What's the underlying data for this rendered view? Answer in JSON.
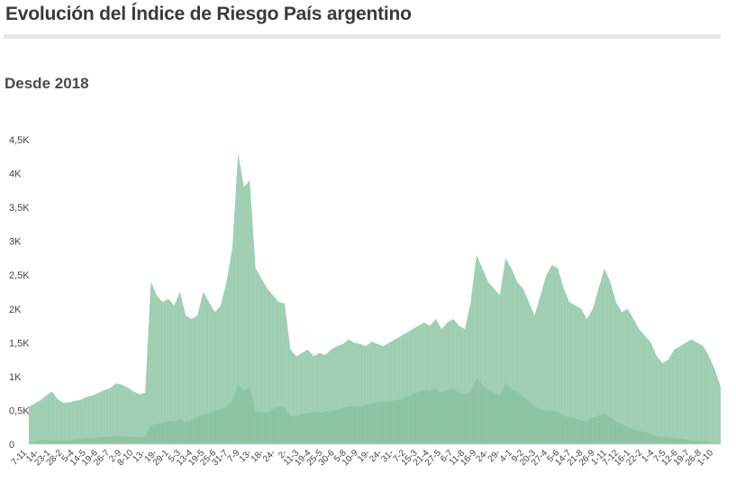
{
  "header": {
    "title": "Evolución del Índice de Riesgo País argentino",
    "subtitle": "Desde 2018"
  },
  "colors": {
    "area": "#9ccdb0",
    "area_inner": "#86bf9e",
    "axis_text": "#444444",
    "title_rule": "#e6e6e6"
  },
  "chart_data": {
    "type": "area",
    "title": "Evolución del Índice de Riesgo País argentino",
    "subtitle": "Desde 2018",
    "xlabel": "",
    "ylabel": "",
    "ylim": [
      0,
      4500
    ],
    "yticks": [
      0,
      500,
      1000,
      1500,
      2000,
      2500,
      3000,
      3500,
      4000,
      4500
    ],
    "ytick_labels": [
      "0",
      "0,5K",
      "1K",
      "1,5K",
      "2K",
      "2,5K",
      "3K",
      "3,5K",
      "4K",
      "4,5K"
    ],
    "xtick_labels": [
      "7-11",
      "14-",
      "23-1",
      "28-2",
      "5-4",
      "14-5",
      "19-6",
      "26-7",
      "2-9",
      "8-10",
      "13-",
      "19-",
      "29-1",
      "5-3",
      "13-4",
      "19-5",
      "25-6",
      "31-7",
      "7-9",
      "13-",
      "18-",
      "24-",
      "2-",
      "11-3",
      "19-4",
      "25-5",
      "30-6",
      "5-8",
      "10-9",
      "19-",
      "24-",
      "31-",
      "7-2",
      "15-3",
      "21-4",
      "27-5",
      "6-7",
      "11-8",
      "16-9",
      "24-",
      "29-",
      "4-1",
      "9-2",
      "20-3",
      "27-4",
      "5-6",
      "14-7",
      "21-8",
      "26-9",
      "1-11",
      "7-12",
      "16-1",
      "22-2",
      "1-4",
      "7-5",
      "12-6",
      "19-7",
      "26-8",
      "1-10"
    ],
    "grid": false,
    "legend": "none",
    "series": [
      {
        "values": [
          560,
          600,
          650,
          720,
          780,
          660,
          610,
          620,
          640,
          660,
          700,
          720,
          760,
          800,
          830,
          900,
          880,
          840,
          780,
          740,
          760,
          2400,
          2200,
          2100,
          2150,
          2050,
          2250,
          1900,
          1850,
          1900,
          2250,
          2100,
          1950,
          2050,
          2400,
          2900,
          4300,
          3800,
          3900,
          2600,
          2450,
          2300,
          2200,
          2100,
          2080,
          1400,
          1300,
          1350,
          1400,
          1300,
          1350,
          1320,
          1400,
          1450,
          1480,
          1550,
          1500,
          1480,
          1450,
          1520,
          1480,
          1450,
          1500,
          1550,
          1600,
          1650,
          1700,
          1750,
          1800,
          1750,
          1850,
          1700,
          1800,
          1850,
          1750,
          1700,
          2100,
          2800,
          2600,
          2400,
          2300,
          2200,
          2750,
          2600,
          2400,
          2300,
          2100,
          1900,
          2200,
          2500,
          2650,
          2600,
          2300,
          2100,
          2050,
          2000,
          1850,
          2000,
          2300,
          2600,
          2400,
          2100,
          1950,
          2000,
          1850,
          1700,
          1600,
          1500,
          1300,
          1200,
          1250,
          1400,
          1450,
          1500,
          1550,
          1500,
          1450,
          1300,
          1100,
          850
        ]
      },
      {
        "values": [
          20,
          40,
          60,
          70,
          60,
          50,
          50,
          60,
          70,
          80,
          90,
          90,
          100,
          110,
          110,
          120,
          120,
          110,
          110,
          100,
          110,
          280,
          300,
          320,
          350,
          330,
          380,
          330,
          360,
          400,
          440,
          460,
          500,
          520,
          560,
          650,
          880,
          780,
          860,
          480,
          480,
          460,
          520,
          560,
          540,
          420,
          420,
          450,
          460,
          480,
          470,
          480,
          500,
          510,
          540,
          560,
          560,
          560,
          580,
          600,
          620,
          620,
          630,
          650,
          660,
          700,
          740,
          770,
          800,
          790,
          830,
          760,
          800,
          820,
          760,
          740,
          780,
          980,
          880,
          800,
          760,
          720,
          900,
          820,
          780,
          700,
          640,
          560,
          520,
          500,
          500,
          480,
          420,
          400,
          380,
          360,
          340,
          400,
          420,
          460,
          400,
          340,
          300,
          260,
          220,
          200,
          180,
          150,
          120,
          110,
          100,
          90,
          80,
          70,
          60,
          50,
          40,
          30,
          20,
          15
        ]
      }
    ]
  }
}
